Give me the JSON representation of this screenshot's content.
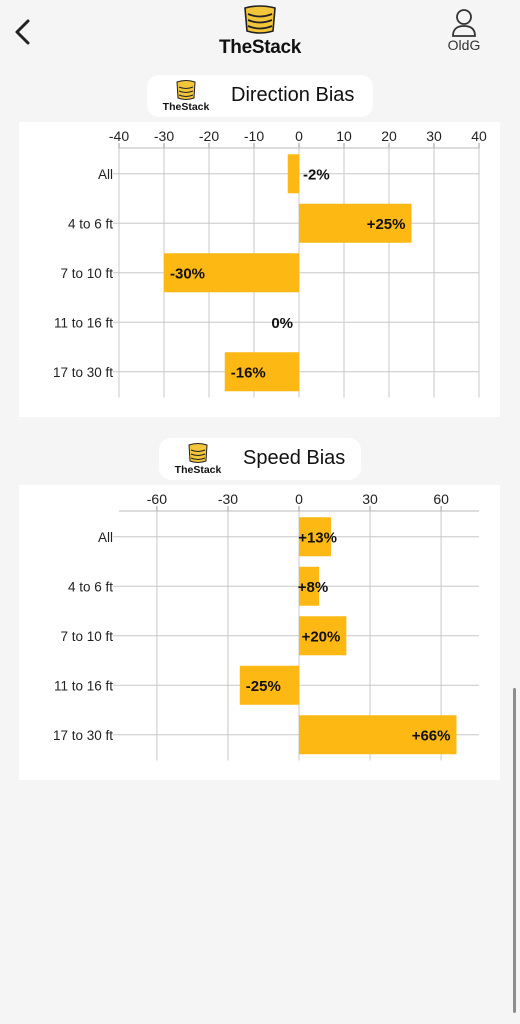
{
  "header": {
    "app_name": "TheStack",
    "user_label": "OldG"
  },
  "icons": {
    "back": "chevron-left-icon",
    "logo": "stack-logo-icon",
    "user": "user-icon"
  },
  "colors": {
    "bar": "#FDB813",
    "logo_fill": "#F3C53B",
    "background": "#F5F5F5"
  },
  "direction_card": {
    "logo_text": "TheStack",
    "title": "Direction Bias"
  },
  "speed_card": {
    "logo_text": "TheStack",
    "title": "Speed Bias"
  },
  "chart_data": [
    {
      "type": "bar",
      "orientation": "horizontal",
      "title": "Direction Bias",
      "categories": [
        "All",
        "4 to 6 ft",
        "7 to 10 ft",
        "11 to 16 ft",
        "17 to 30 ft"
      ],
      "values": [
        -2.5,
        25,
        -30,
        0,
        -16.5
      ],
      "labels": [
        "-2%",
        "+25%",
        "-30%",
        "0%",
        "-16%"
      ],
      "xlim": [
        -40,
        40
      ],
      "xticks": [
        -40,
        -30,
        -20,
        -10,
        0,
        10,
        20,
        30,
        40
      ],
      "xtick_labels": [
        "-40",
        "-30",
        "-20",
        "-10",
        "0",
        "10",
        "20",
        "30",
        "40"
      ],
      "grid": true
    },
    {
      "type": "bar",
      "orientation": "horizontal",
      "title": "Speed Bias",
      "categories": [
        "All",
        "4 to 6 ft",
        "7 to 10 ft",
        "11 to 16 ft",
        "17 to 30 ft"
      ],
      "values": [
        13.5,
        8.5,
        20,
        -25,
        66.5
      ],
      "labels": [
        "+13%",
        "+8%",
        "+20%",
        "-25%",
        "+66%"
      ],
      "xlim": [
        -76,
        76
      ],
      "xticks": [
        -60,
        -30,
        0,
        30,
        60
      ],
      "xtick_labels": [
        "-60",
        "-30",
        "0",
        "30",
        "60"
      ],
      "grid": true
    }
  ]
}
